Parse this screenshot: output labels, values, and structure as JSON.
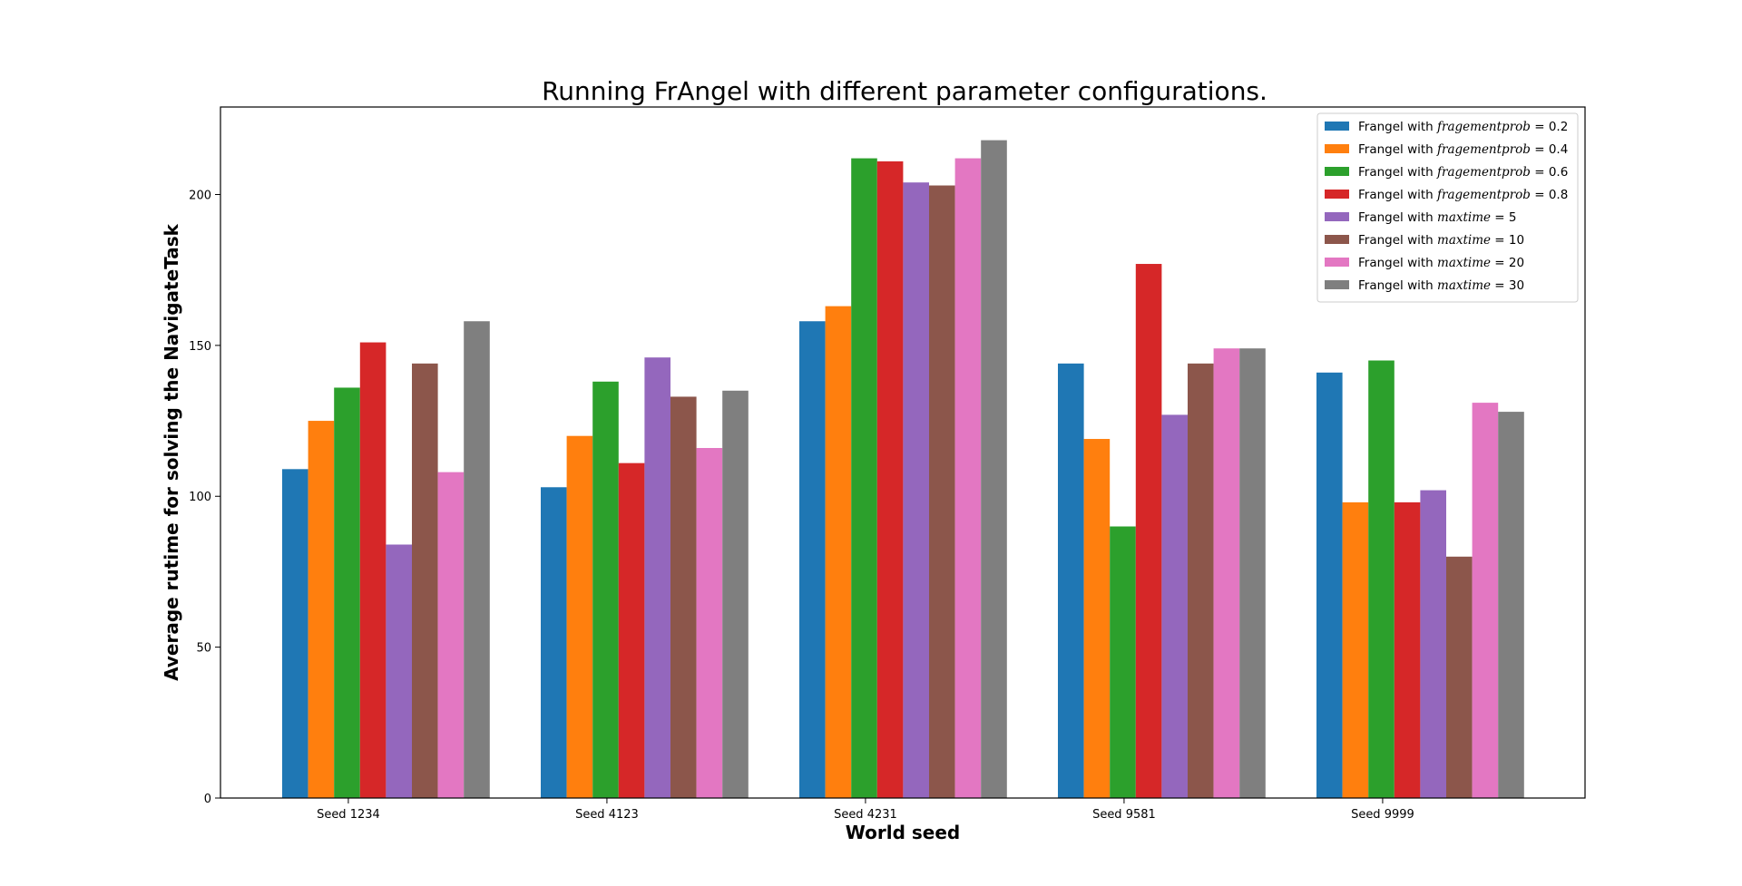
{
  "chart_data": {
    "type": "bar",
    "title": "Running FrAngel with different parameter configurations.",
    "xlabel": "World seed",
    "ylabel": "Average rutime for solving the NavigateTask",
    "categories": [
      "Seed 1234",
      "Seed 4123",
      "Seed 4231",
      "Seed 9581",
      "Seed 9999"
    ],
    "ylim": [
      0,
      229
    ],
    "yticks": [
      0,
      50,
      100,
      150,
      200
    ],
    "grid": false,
    "legend_position": "top-right",
    "series": [
      {
        "name": "Frangel with fragementprob = 0.2",
        "prefix": "Frangel with ",
        "param": "fragementprob",
        "value": "0.2",
        "color": "#1f77b4",
        "values": [
          109,
          103,
          158,
          144,
          141
        ]
      },
      {
        "name": "Frangel with fragementprob = 0.4",
        "prefix": "Frangel with ",
        "param": "fragementprob",
        "value": "0.4",
        "color": "#ff7f0e",
        "values": [
          125,
          120,
          163,
          119,
          98
        ]
      },
      {
        "name": "Frangel with fragementprob = 0.6",
        "prefix": "Frangel with ",
        "param": "fragementprob",
        "value": "0.6",
        "color": "#2ca02c",
        "values": [
          136,
          138,
          212,
          90,
          145
        ]
      },
      {
        "name": "Frangel with fragementprob = 0.8",
        "prefix": "Frangel with ",
        "param": "fragementprob",
        "value": "0.8",
        "color": "#d62728",
        "values": [
          151,
          111,
          211,
          177,
          98
        ]
      },
      {
        "name": "Frangel with maxtime = 5",
        "prefix": "Frangel with ",
        "param": "maxtime",
        "value": "5",
        "color": "#9467bd",
        "values": [
          84,
          146,
          204,
          127,
          102
        ]
      },
      {
        "name": "Frangel with maxtime = 10",
        "prefix": "Frangel with ",
        "param": "maxtime",
        "value": "10",
        "color": "#8c564b",
        "values": [
          144,
          133,
          203,
          144,
          80
        ]
      },
      {
        "name": "Frangel with maxtime = 20",
        "prefix": "Frangel with ",
        "param": "maxtime",
        "value": "20",
        "color": "#e377c2",
        "values": [
          108,
          116,
          212,
          149,
          131
        ]
      },
      {
        "name": "Frangel with maxtime = 30",
        "prefix": "Frangel with ",
        "param": "maxtime",
        "value": "30",
        "color": "#7f7f7f",
        "values": [
          158,
          135,
          218,
          149,
          128
        ]
      }
    ]
  }
}
